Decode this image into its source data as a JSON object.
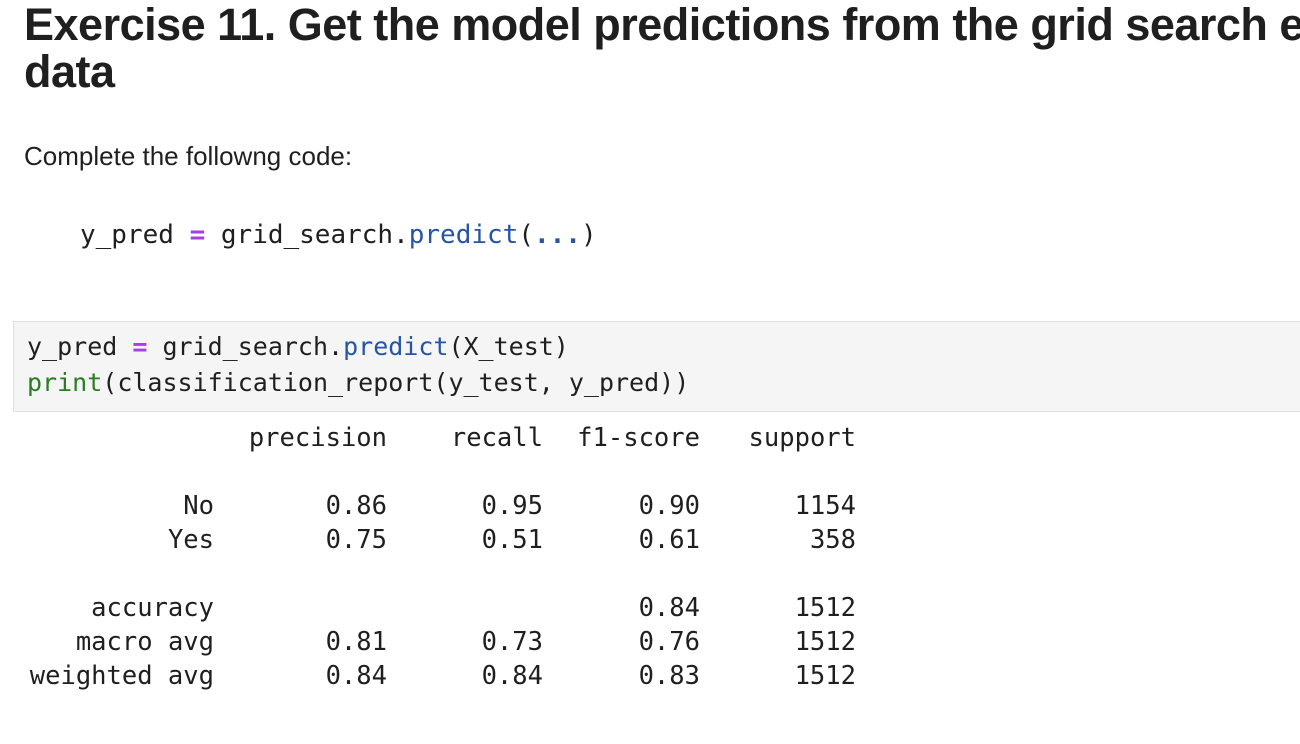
{
  "heading": {
    "lines": [
      "Exercise 11. Get the model predictions from the grid search e",
      "data"
    ]
  },
  "paragraph": "Complete the followng code:",
  "example_code": {
    "tokens": [
      "y_pred ",
      "=",
      " grid_search.",
      "predict",
      "(",
      "...",
      ")"
    ]
  },
  "input_cell": {
    "lines": [
      {
        "tokens": [
          "y_pred ",
          "=",
          " grid_search.",
          "predict",
          "(X_test)"
        ]
      },
      {
        "tokens": [
          "print",
          "(classification_report(y_test, y_pred))"
        ]
      }
    ]
  },
  "output": {
    "columns": [
      "precision",
      "recall",
      "f1-score",
      "support"
    ],
    "rows": [
      [
        "No",
        "0.86",
        "0.95",
        "0.90",
        "1154"
      ],
      [
        "Yes",
        "0.75",
        "0.51",
        "0.61",
        "358"
      ],
      [
        "accuracy",
        null,
        null,
        "0.84",
        "1512"
      ],
      [
        "macro avg",
        "0.81",
        "0.73",
        "0.76",
        "1512"
      ],
      [
        "weighted avg",
        "0.84",
        "0.84",
        "0.83",
        "1512"
      ]
    ]
  }
}
